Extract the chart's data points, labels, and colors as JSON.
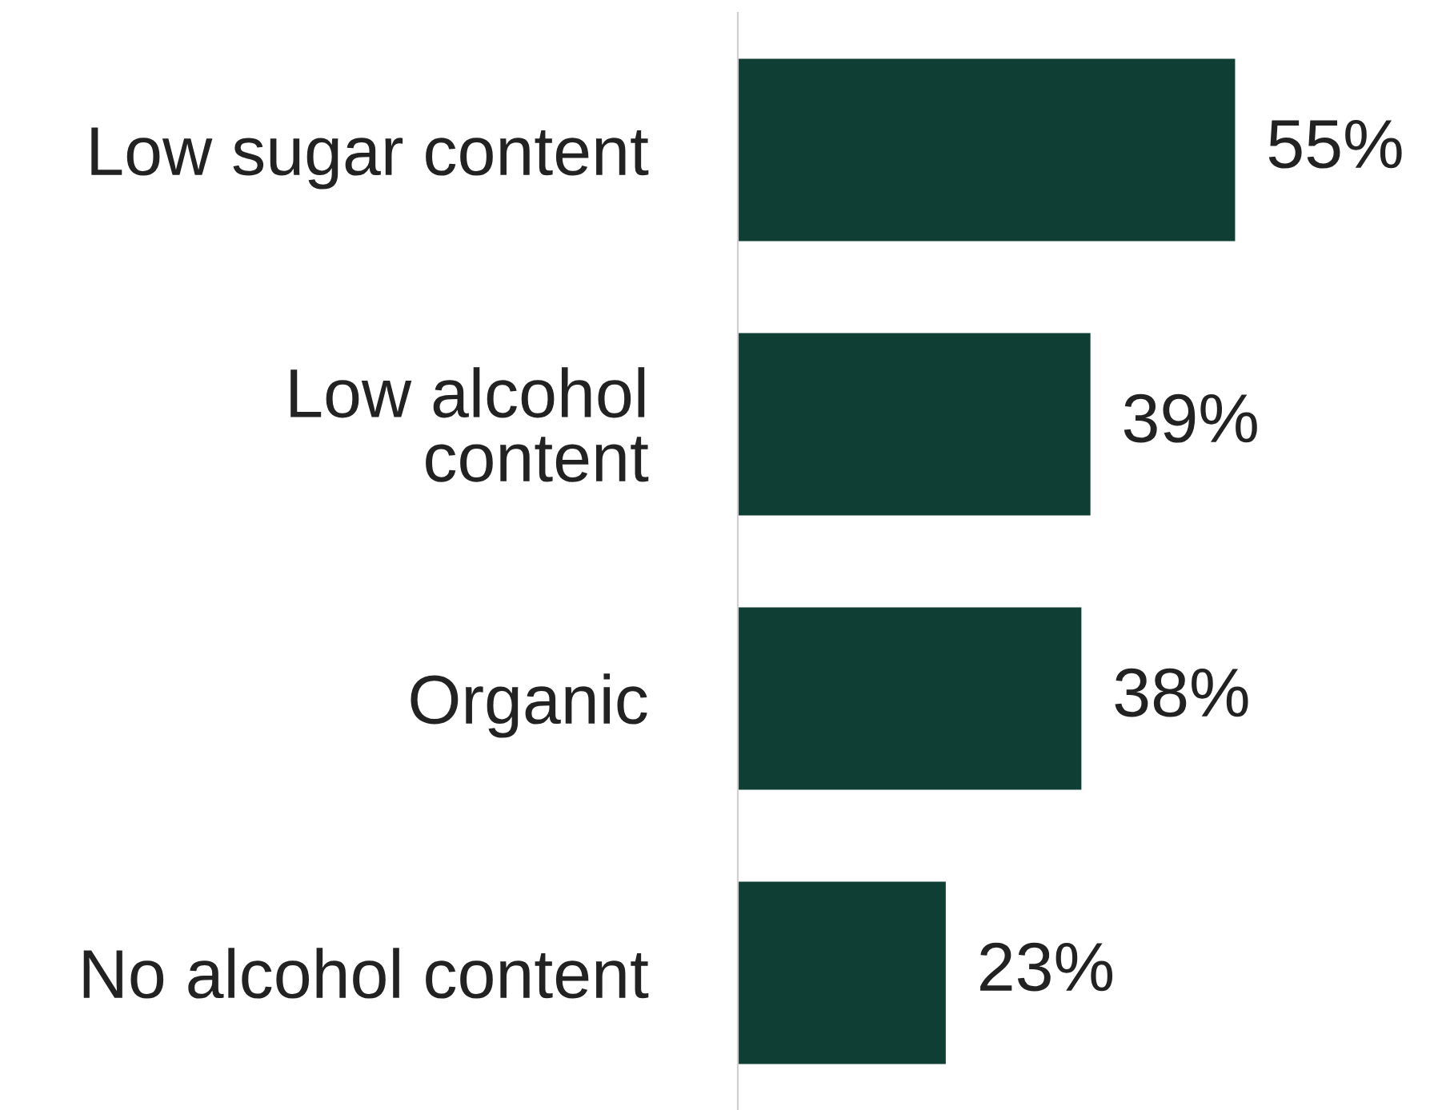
{
  "chart_data": {
    "type": "bar",
    "orientation": "horizontal",
    "categories": [
      "Low sugar content",
      "Low alcohol\ncontent",
      "Organic",
      "No alcohol content"
    ],
    "values": [
      55,
      39,
      38,
      23
    ],
    "value_labels": [
      "55%",
      "39%",
      "38%",
      "23%"
    ],
    "color": "#0f3f34",
    "grid": false,
    "legend": false
  }
}
